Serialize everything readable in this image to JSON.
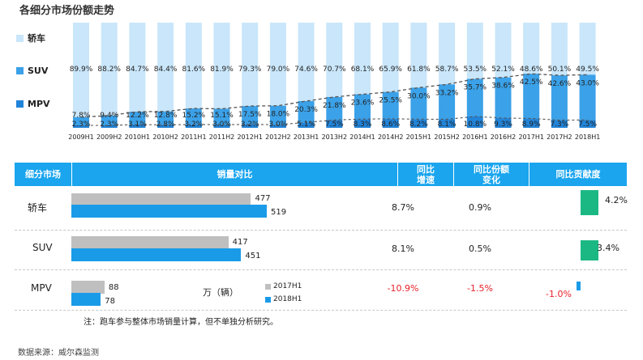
{
  "chart_data": {
    "type": "bar",
    "stacked": true,
    "title": "各细分市场份额走势",
    "categories": [
      "2009H1",
      "2009H2",
      "2010H1",
      "2010H2",
      "2011H1",
      "2011H2",
      "2012H1",
      "2012H2",
      "2013H1",
      "2013H2",
      "2014H1",
      "2014H2",
      "2015H1",
      "2015H2",
      "2016H1",
      "2016H2",
      "2017H1",
      "2017H2",
      "2018H1"
    ],
    "series": [
      {
        "name": "MPV",
        "values": [
          2.3,
          2.3,
          3.1,
          2.8,
          3.2,
          3.0,
          3.2,
          3.0,
          5.1,
          7.5,
          8.3,
          8.6,
          8.2,
          8.1,
          10.8,
          9.3,
          8.9,
          7.3,
          7.5
        ],
        "labels": [
          "2.3%",
          "2.3%",
          "3.1%",
          "2.8%",
          "3.2%",
          "3.0%",
          "3.2%",
          "3.0%",
          "5.1%",
          "7.5%",
          "8.3%",
          "8.6%",
          "8.2%",
          "8.1%",
          "10.8%",
          "9.3%",
          "8.9%",
          "7.3%",
          "7.5%"
        ]
      },
      {
        "name": "SUV",
        "values": [
          7.8,
          9.4,
          12.2,
          12.8,
          15.2,
          15.1,
          17.5,
          18.0,
          20.3,
          21.8,
          23.6,
          25.5,
          30.0,
          33.2,
          35.7,
          38.6,
          42.5,
          42.6,
          43.0
        ],
        "labels": [
          "7.8%",
          "9.4%",
          "12.2%",
          "12.8%",
          "15.2%",
          "15.1%",
          "17.5%",
          "18.0%",
          "20.3%",
          "21.8%",
          "23.6%",
          "25.5%",
          "30.0%",
          "33.2%",
          "35.7%",
          "38.6%",
          "42.5%",
          "42.6%",
          "43.0%"
        ]
      },
      {
        "name": "轿车",
        "values": [
          89.9,
          88.2,
          84.7,
          84.4,
          81.6,
          81.9,
          79.3,
          79.0,
          74.6,
          70.7,
          68.1,
          65.9,
          61.8,
          58.7,
          53.5,
          52.1,
          48.6,
          50.1,
          49.5
        ],
        "labels": [
          "89.9%",
          "88.2%",
          "84.7%",
          "84.4%",
          "81.6%",
          "81.9%",
          "79.3%",
          "79.0%",
          "74.6%",
          "70.7%",
          "68.1%",
          "65.9%",
          "61.8%",
          "58.7%",
          "53.5%",
          "52.1%",
          "48.6%",
          "50.1%",
          "49.5%"
        ]
      }
    ],
    "colors": {
      "轿车": "#c9e6fa",
      "SUV": "#3ba1e8",
      "MPV": "#2284d8"
    },
    "ylim": [
      0,
      100
    ],
    "legend_position": "left"
  },
  "legend": {
    "sedan": "轿车",
    "suv": "SUV",
    "mpv": "MPV"
  },
  "table": {
    "headers": {
      "segment": "细分市场",
      "volume": "销量对比",
      "growth": [
        "同比",
        "增速"
      ],
      "share": [
        "同比份额",
        "变化"
      ],
      "contribution": "同比贡献度"
    },
    "rows": [
      {
        "segment": "轿车",
        "v2017": 477,
        "v2018": 519,
        "v2017_label": "477",
        "v2018_label": "519",
        "growth": "8.7%",
        "share": "0.9%",
        "contribution": 4.2,
        "contribution_label": "4.2%"
      },
      {
        "segment": "SUV",
        "v2017": 417,
        "v2018": 451,
        "v2017_label": "417",
        "v2018_label": "451",
        "growth": "8.1%",
        "share": "0.5%",
        "contribution": 3.4,
        "contribution_label": "3.4%"
      },
      {
        "segment": "MPV",
        "v2017": 88,
        "v2018": 78,
        "v2017_label": "88",
        "v2018_label": "78",
        "growth": "-10.9%",
        "share": "-1.5%",
        "contribution": -1.0,
        "contribution_label": "-1.0%"
      }
    ],
    "unit": "万（辆）",
    "legend": {
      "y2017": "2017H1",
      "y2018": "2018H1"
    },
    "colors": {
      "y2017": "#bfbfbf",
      "y2018": "#1a9be8",
      "contribution_pos": "#1cb884",
      "contribution_neg": "#1a9be8",
      "negative_text": "#e8202a"
    }
  },
  "note": "注：跑车参与整体市场销量计算，但不单独分析研究。",
  "source": "数据来源：威尔森监测"
}
